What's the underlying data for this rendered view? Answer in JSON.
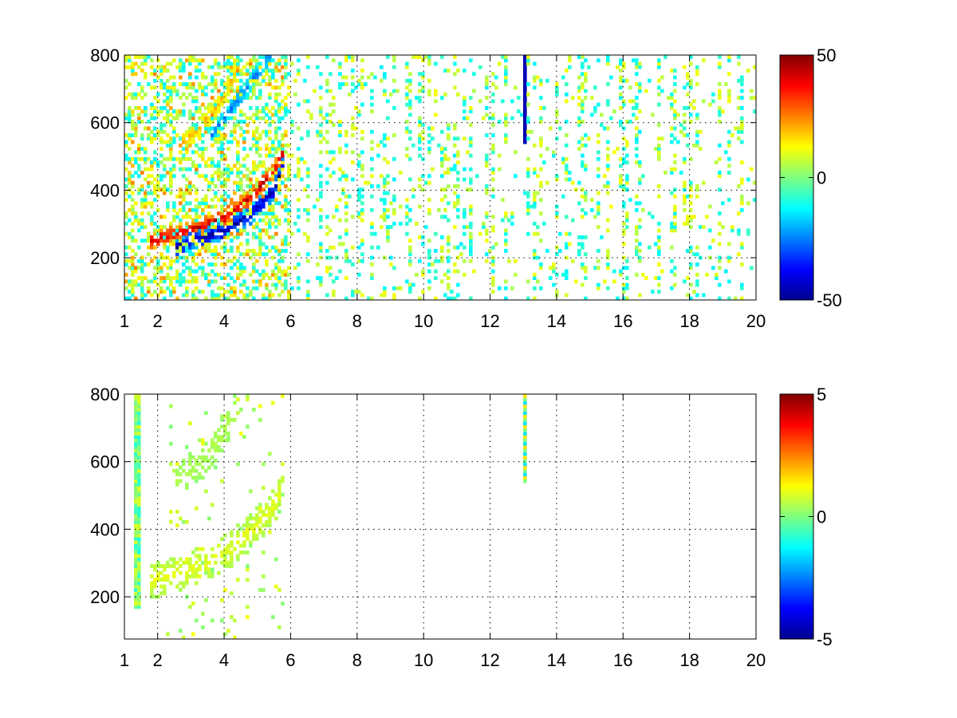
{
  "chart_data": [
    {
      "type": "heatmap",
      "title": "",
      "xlabel": "",
      "ylabel": "",
      "xlim": [
        1,
        20
      ],
      "ylim": [
        75,
        800
      ],
      "x_ticks": [
        1,
        2,
        4,
        6,
        8,
        10,
        12,
        14,
        16,
        18,
        20
      ],
      "y_ticks": [
        200,
        400,
        600,
        800
      ],
      "grid": true,
      "colormap": "jet",
      "colorbar": {
        "min": -50,
        "max": 50,
        "ticks": [
          -50,
          0,
          50
        ]
      },
      "features": [
        {
          "kind": "ridge",
          "x": [
            1.8,
            2.5,
            3.2,
            4.0,
            4.8,
            5.5,
            5.8
          ],
          "y": [
            250,
            270,
            290,
            320,
            380,
            460,
            520
          ],
          "value": 40
        },
        {
          "kind": "ridge",
          "x": [
            2.5,
            3.2,
            4.0,
            4.8,
            5.5,
            5.8
          ],
          "y": [
            230,
            260,
            280,
            330,
            400,
            480
          ],
          "value": -45
        },
        {
          "kind": "ridge",
          "x": [
            2.6,
            3.2,
            3.8,
            4.4
          ],
          "y": [
            530,
            580,
            650,
            760
          ],
          "value": 20
        },
        {
          "kind": "ridge",
          "x": [
            3.6,
            4.2,
            4.8,
            5.4
          ],
          "y": [
            560,
            640,
            720,
            800
          ],
          "value": -25
        },
        {
          "kind": "bar",
          "x": 13.05,
          "y": [
            535,
            800
          ],
          "value": -45
        }
      ]
    },
    {
      "type": "heatmap",
      "title": "",
      "xlabel": "",
      "ylabel": "",
      "xlim": [
        1,
        20
      ],
      "ylim": [
        75,
        800
      ],
      "x_ticks": [
        1,
        2,
        4,
        6,
        8,
        10,
        12,
        14,
        16,
        18,
        20
      ],
      "y_ticks": [
        200,
        400,
        600,
        800
      ],
      "grid": true,
      "colormap": "jet",
      "colorbar": {
        "min": -5,
        "max": 5,
        "ticks": [
          -5,
          0,
          5
        ]
      },
      "features": [
        {
          "kind": "band",
          "x": [
            1.8,
            2.5,
            3.2,
            4.0,
            4.8,
            5.5,
            5.8
          ],
          "y": [
            250,
            265,
            290,
            330,
            390,
            470,
            540
          ],
          "value": 1
        },
        {
          "kind": "band",
          "x": [
            2.5,
            3.2,
            3.8,
            4.4
          ],
          "y": [
            540,
            590,
            660,
            760
          ],
          "value": 0.5
        },
        {
          "kind": "bar",
          "x": 13.05,
          "y": [
            535,
            800
          ],
          "value": 1
        },
        {
          "kind": "bar",
          "x": 1.4,
          "y": [
            170,
            800
          ],
          "value": 0
        }
      ]
    }
  ]
}
